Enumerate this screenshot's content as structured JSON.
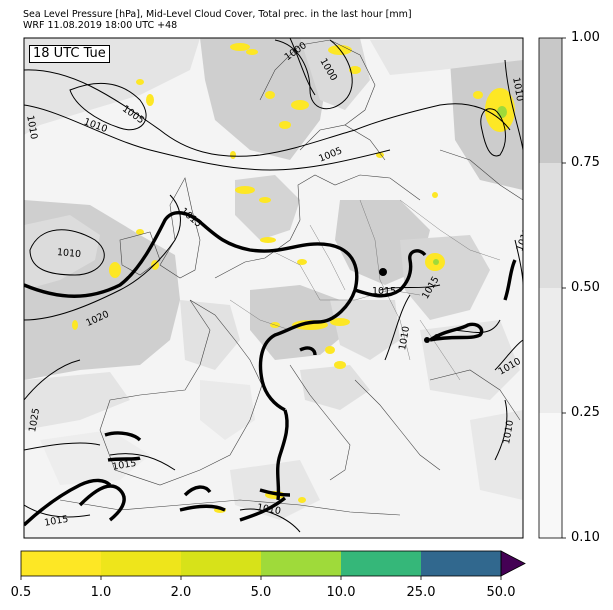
{
  "header": {
    "line1": "Sea Level Pressure [hPa], Mid-Level Cloud Cover, Total prec. in the last hour [mm]",
    "line2": "WRF 11.08.2019 18:00 UTC +48"
  },
  "map": {
    "time_badge": "18 UTC Tue",
    "isobar_labels": [
      {
        "id": "lbl-1000-a",
        "text": "1000"
      },
      {
        "id": "lbl-1000-b",
        "text": "1000"
      },
      {
        "id": "lbl-1005-a",
        "text": "1005"
      },
      {
        "id": "lbl-1005-b",
        "text": "1005"
      },
      {
        "id": "lbl-1010-a",
        "text": "1010"
      },
      {
        "id": "lbl-1010-b",
        "text": "1010"
      },
      {
        "id": "lbl-1010-c",
        "text": "1010"
      },
      {
        "id": "lbl-1010-d",
        "text": "1010"
      },
      {
        "id": "lbl-1010-e",
        "text": "1010"
      },
      {
        "id": "lbl-1010-f",
        "text": "1010"
      },
      {
        "id": "lbl-1010-g",
        "text": "1010"
      },
      {
        "id": "lbl-1010-h",
        "text": "1010"
      },
      {
        "id": "lbl-1015-a",
        "text": "1015"
      },
      {
        "id": "lbl-1015-b",
        "text": "1015"
      },
      {
        "id": "lbl-1015-c",
        "text": "1015"
      },
      {
        "id": "lbl-1015-d",
        "text": "1015"
      },
      {
        "id": "lbl-1015-e",
        "text": "1015"
      },
      {
        "id": "lbl-1015-f",
        "text": "1015"
      },
      {
        "id": "lbl-1020",
        "text": "1020"
      },
      {
        "id": "lbl-1025",
        "text": "1025"
      }
    ]
  },
  "cloud_colorbar": {
    "ticks": [
      "1.00",
      "0.75",
      "0.50",
      "0.25",
      "0.10"
    ],
    "colors": [
      "#c8c8c8",
      "#dedede",
      "#ececec",
      "#f8f8f8"
    ]
  },
  "precip_colorbar": {
    "ticks": [
      "0.5",
      "1.0",
      "2.0",
      "5.0",
      "10.0",
      "25.0",
      "50.0"
    ],
    "colors": [
      "#fde725",
      "#eee51b",
      "#d7e219",
      "#9fda3a",
      "#35b779",
      "#31688e",
      "#440154"
    ]
  }
}
